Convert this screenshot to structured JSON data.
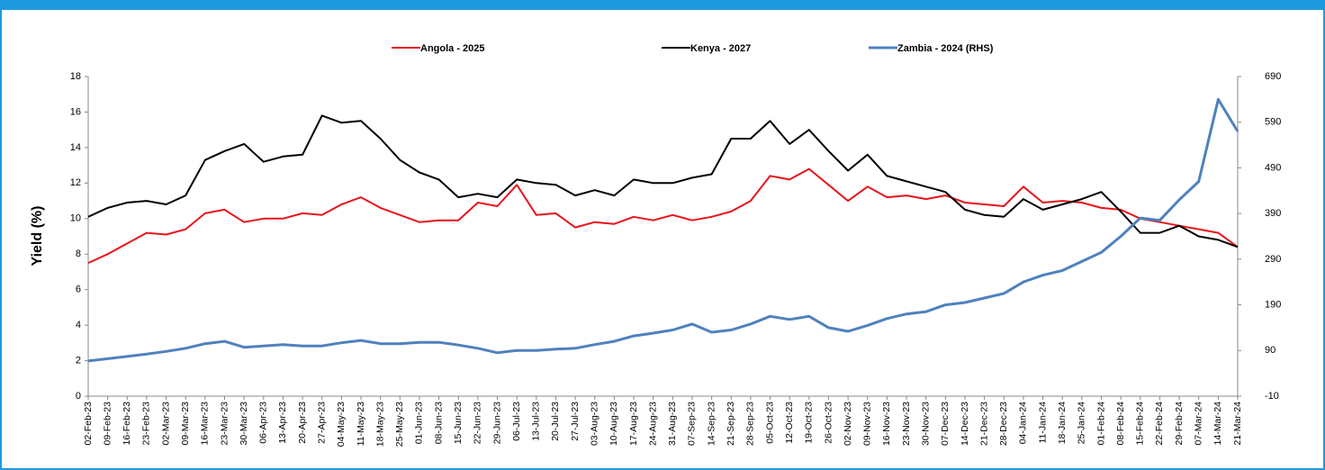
{
  "chart_data": {
    "type": "line",
    "y_label": "Yield (%)",
    "categories": [
      "02-Feb-23",
      "09-Feb-23",
      "16-Feb-23",
      "23-Feb-23",
      "02-Mar-23",
      "09-Mar-23",
      "16-Mar-23",
      "23-Mar-23",
      "30-Mar-23",
      "06-Apr-23",
      "13-Apr-23",
      "20-Apr-23",
      "27-Apr-23",
      "04-May-23",
      "11-May-23",
      "18-May-23",
      "25-May-23",
      "01-Jun-23",
      "08-Jun-23",
      "15-Jun-23",
      "22-Jun-23",
      "29-Jun-23",
      "06-Jul-23",
      "13-Jul-23",
      "20-Jul-23",
      "27-Jul-23",
      "03-Aug-23",
      "10-Aug-23",
      "17-Aug-23",
      "24-Aug-23",
      "31-Aug-23",
      "07-Sep-23",
      "14-Sep-23",
      "21-Sep-23",
      "28-Sep-23",
      "05-Oct-23",
      "12-Oct-23",
      "19-Oct-23",
      "26-Oct-23",
      "02-Nov-23",
      "09-Nov-23",
      "16-Nov-23",
      "23-Nov-23",
      "30-Nov-23",
      "07-Dec-23",
      "14-Dec-23",
      "21-Dec-23",
      "28-Dec-23",
      "04-Jan-24",
      "11-Jan-24",
      "18-Jan-24",
      "25-Jan-24",
      "01-Feb-24",
      "08-Feb-24",
      "15-Feb-24",
      "22-Feb-24",
      "29-Feb-24",
      "07-Mar-24",
      "14-Mar-24",
      "21-Mar-24"
    ],
    "series": [
      {
        "name": "Angola - 2025",
        "color": "#e8141b",
        "values": [
          7.5,
          8.0,
          8.6,
          9.2,
          9.1,
          9.4,
          10.3,
          10.5,
          9.8,
          10.0,
          10.0,
          10.3,
          10.2,
          10.8,
          11.2,
          10.6,
          10.2,
          9.8,
          9.9,
          9.9,
          10.9,
          10.7,
          11.9,
          10.2,
          10.3,
          9.5,
          9.8,
          9.7,
          10.1,
          9.9,
          10.2,
          9.9,
          10.1,
          10.4,
          11.0,
          12.4,
          12.2,
          12.8,
          11.9,
          11.0,
          11.8,
          11.2,
          11.3,
          11.1,
          11.3,
          10.9,
          10.8,
          10.7,
          11.8,
          10.9,
          11.0,
          10.9,
          10.6,
          10.5,
          10.0,
          9.8,
          9.6,
          9.4,
          9.2,
          8.4
        ]
      },
      {
        "name": "Kenya -  2027",
        "color": "#000000",
        "values": [
          10.1,
          10.6,
          10.9,
          11.0,
          10.8,
          11.3,
          13.3,
          13.8,
          14.2,
          13.2,
          13.5,
          13.6,
          15.8,
          15.4,
          15.5,
          14.5,
          13.3,
          12.6,
          12.2,
          11.2,
          11.4,
          11.2,
          12.2,
          12.0,
          11.9,
          11.3,
          11.6,
          11.3,
          12.2,
          12.0,
          12.0,
          12.3,
          12.5,
          14.5,
          14.5,
          15.5,
          14.2,
          15.0,
          13.8,
          12.7,
          13.6,
          12.4,
          12.1,
          11.8,
          11.5,
          10.5,
          10.2,
          10.1,
          11.1,
          10.5,
          10.8,
          11.1,
          11.5,
          10.4,
          9.2,
          9.2,
          9.6,
          9.0,
          8.8,
          8.4
        ]
      },
      {
        "name": "Zambia - 2024 (RHS)",
        "color": "#4f81bd",
        "axis": "y2",
        "values": [
          67,
          72,
          77,
          82,
          88,
          95,
          105,
          110,
          97,
          100,
          103,
          100,
          100,
          107,
          112,
          105,
          105,
          108,
          108,
          102,
          95,
          85,
          90,
          90,
          93,
          95,
          103,
          110,
          122,
          128,
          135,
          148,
          130,
          135,
          148,
          165,
          158,
          165,
          140,
          132,
          145,
          160,
          170,
          175,
          190,
          195,
          205,
          215,
          240,
          255,
          265,
          285,
          305,
          340,
          380,
          375,
          420,
          460,
          640,
          570
        ]
      }
    ],
    "ylim": [
      0,
      18
    ],
    "yticks": [
      0,
      2,
      4,
      6,
      8,
      10,
      12,
      14,
      16,
      18
    ],
    "y2lim": [
      -10,
      690
    ],
    "y2ticks": [
      -10,
      90,
      190,
      290,
      390,
      490,
      590,
      690
    ]
  }
}
